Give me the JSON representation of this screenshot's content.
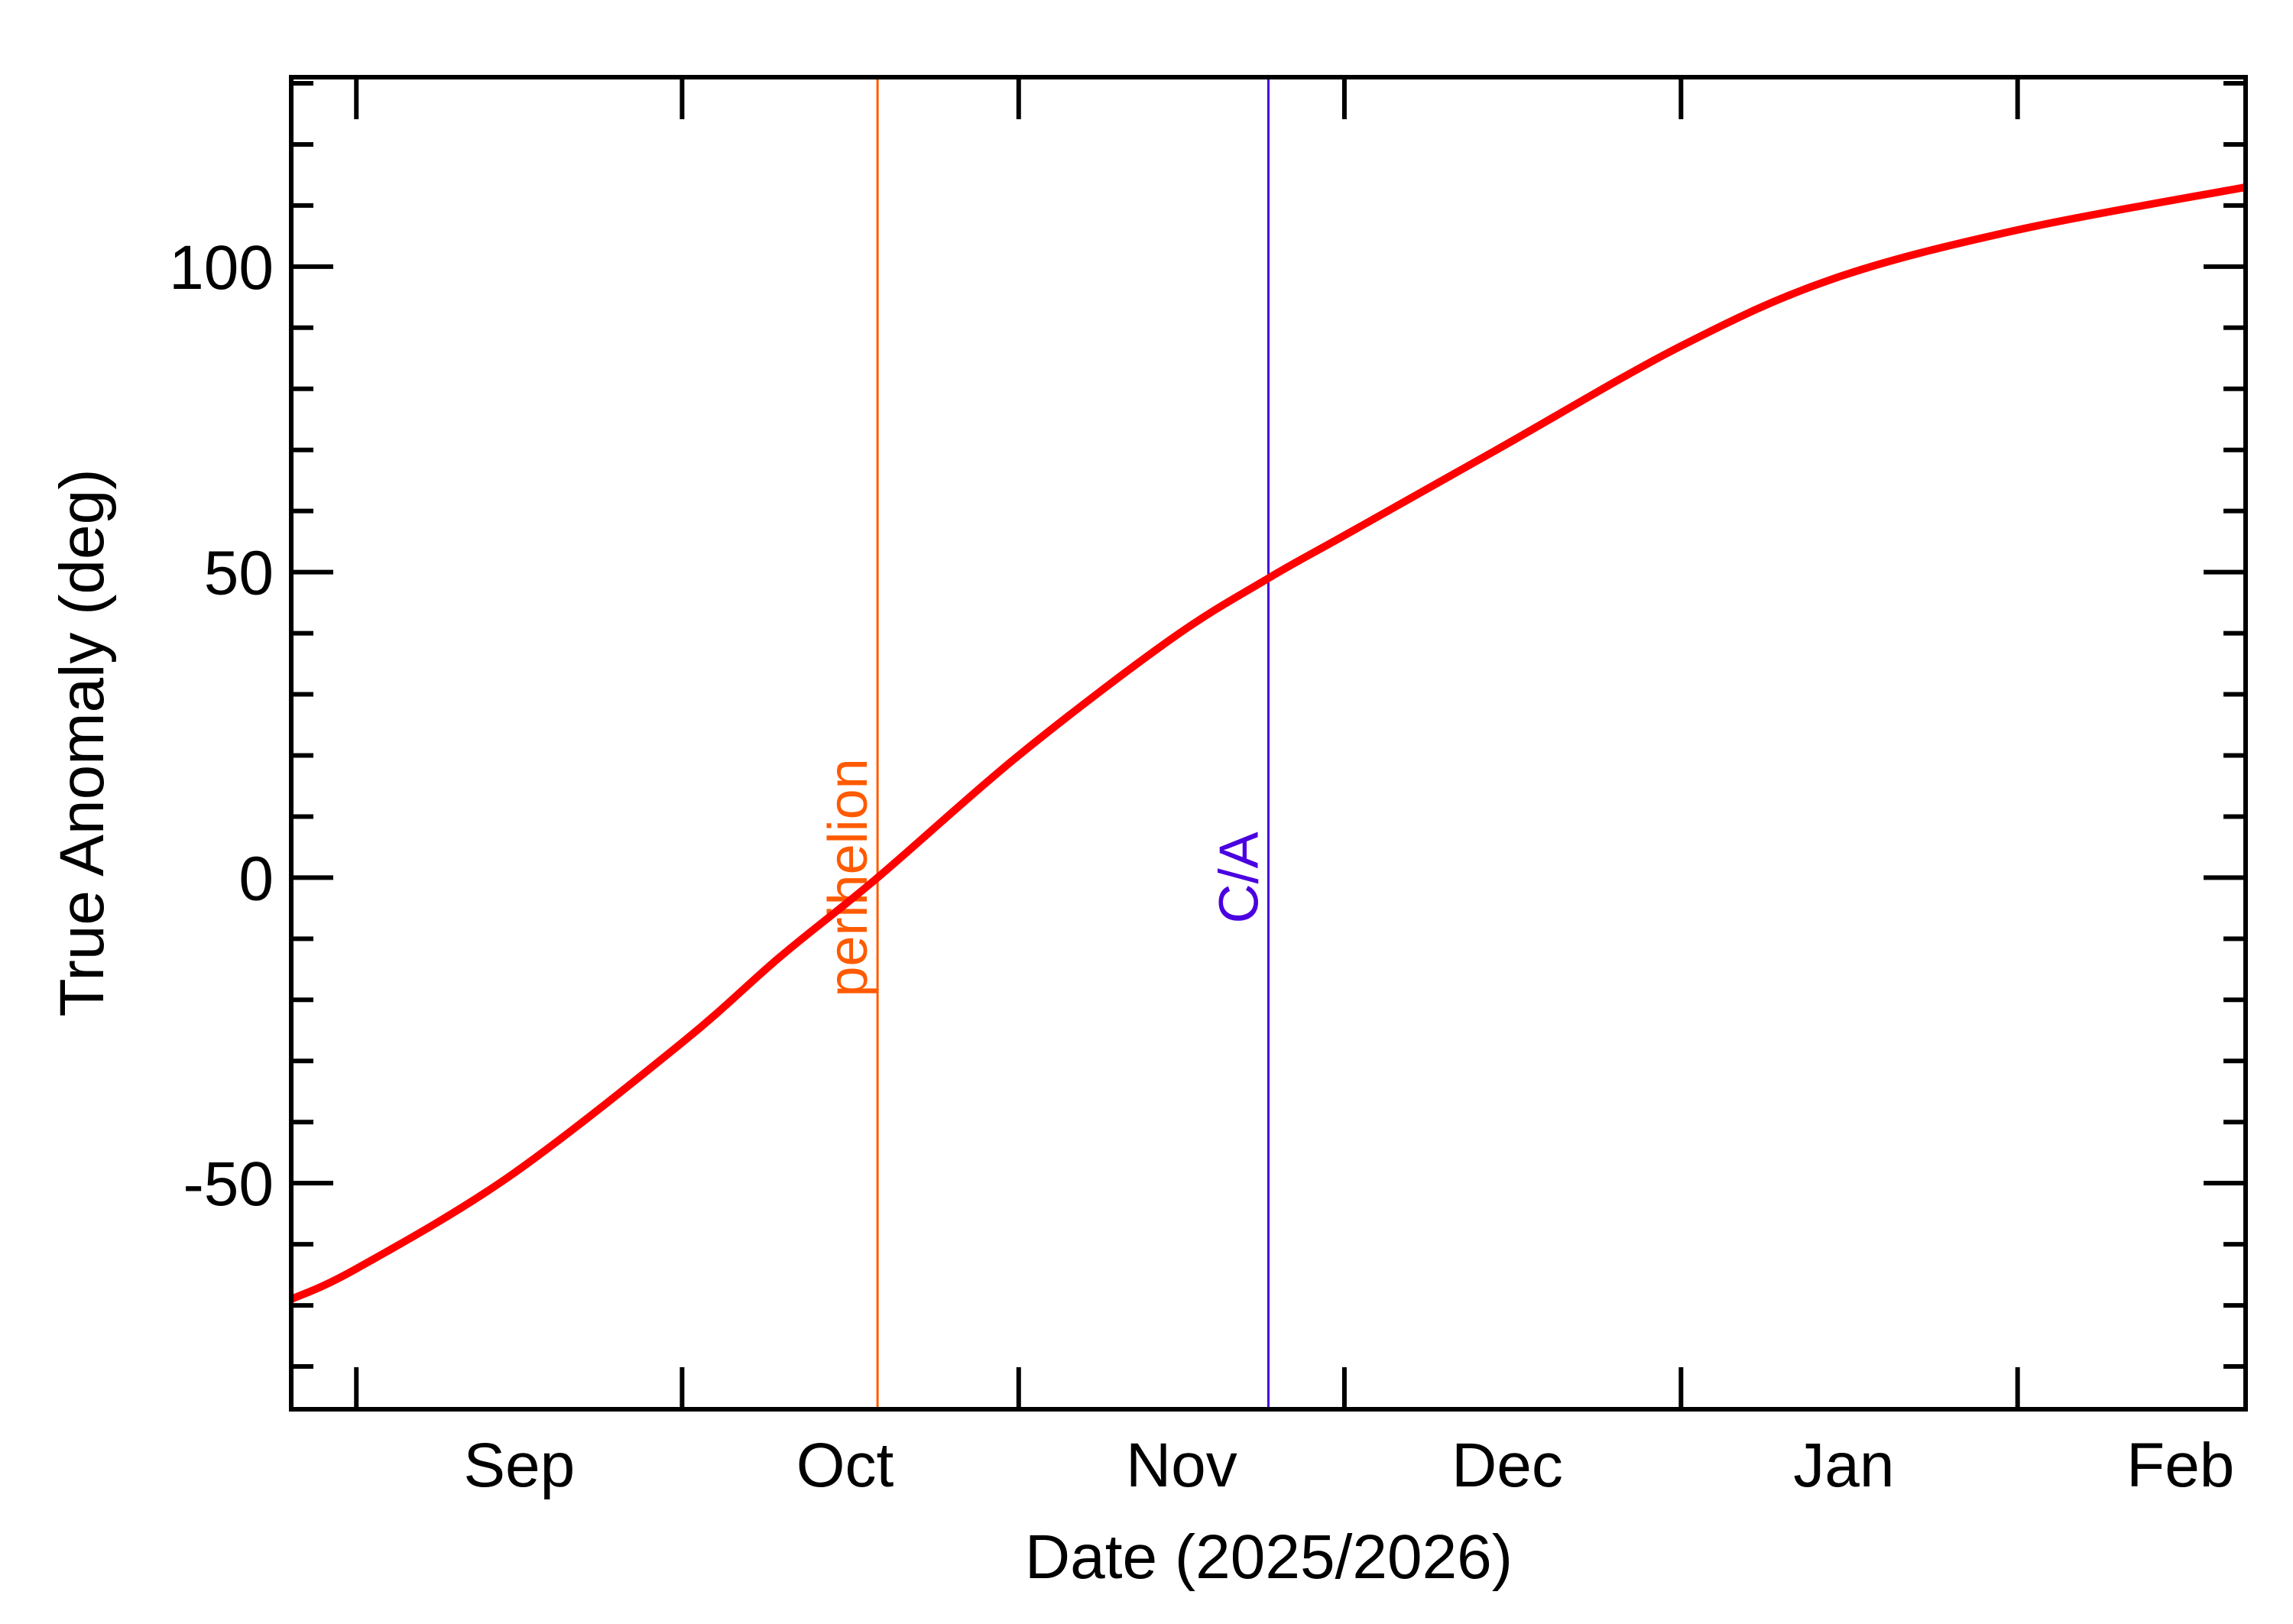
{
  "chart_data": {
    "type": "line",
    "title": "",
    "xlabel": "Date (2025/2026)",
    "ylabel": "True Anomaly (deg)",
    "xlim": [
      "2025-08-26",
      "2026-02-22"
    ],
    "ylim": [
      -87,
      131
    ],
    "grid": false,
    "x_major_ticks": [
      "2025-09-01",
      "2025-10-01",
      "2025-11-01",
      "2025-12-01",
      "2026-01-01",
      "2026-02-01"
    ],
    "x_tick_labels": [
      {
        "label": "Sep",
        "at": "2025-09-16"
      },
      {
        "label": "Oct",
        "at": "2025-10-16"
      },
      {
        "label": "Nov",
        "at": "2025-11-16"
      },
      {
        "label": "Dec",
        "at": "2025-12-16"
      },
      {
        "label": "Jan",
        "at": "2026-01-16"
      },
      {
        "label": "Feb",
        "at": "2026-02-16"
      }
    ],
    "y_major_ticks": [
      -50,
      0,
      50,
      100
    ],
    "y_tick_labels": [
      "-50",
      "0",
      "50",
      "100"
    ],
    "y_minor_step": 10,
    "series": [
      {
        "color": "#ff0000",
        "x": [
          "2025-08-26",
          "2025-09-01",
          "2025-09-15",
          "2025-10-01",
          "2025-10-10",
          "2025-10-19",
          "2025-11-01",
          "2025-11-15",
          "2025-11-24",
          "2025-12-01",
          "2025-12-15",
          "2026-01-01",
          "2026-01-15",
          "2026-02-01",
          "2026-02-22"
        ],
        "y": [
          -69,
          -64,
          -49,
          -27,
          -13,
          0,
          20,
          39,
          49,
          56,
          70,
          87,
          98,
          106,
          113
        ]
      }
    ],
    "annotations": [
      {
        "label": "perihelion",
        "date": "2025-10-19",
        "color": "#ff5a00"
      },
      {
        "label": "C/A",
        "date": "2025-11-24",
        "color": "#4a00e0"
      }
    ]
  }
}
